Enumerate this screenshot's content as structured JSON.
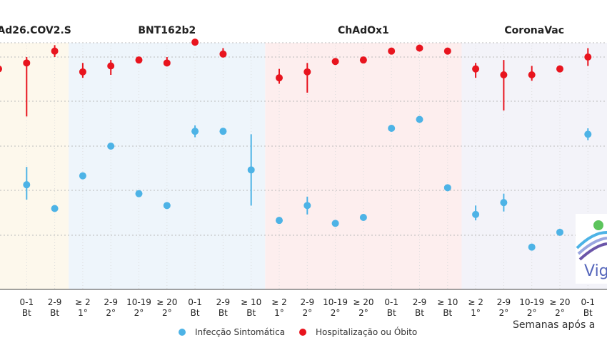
{
  "chart_data": {
    "type": "scatter",
    "series": [
      {
        "name": "Infecção Sintomática",
        "color": "#4db3e6"
      },
      {
        "name": "Hospitalização ou Óbito",
        "color": "#e8141e"
      }
    ],
    "xlabel": "Semanas após a",
    "ylim": [
      0,
      100
    ],
    "grid": true,
    "legend": "bottom",
    "categories": [
      {
        "l1": "",
        "l2": ""
      },
      {
        "l1": "0-1",
        "l2": "Bt"
      },
      {
        "l1": "2-9",
        "l2": "Bt"
      },
      {
        "l1": "≥ 2",
        "l2": "1°"
      },
      {
        "l1": "2-9",
        "l2": "2°"
      },
      {
        "l1": "10-19",
        "l2": "2°"
      },
      {
        "l1": "≥ 20",
        "l2": "2°"
      },
      {
        "l1": "0-1",
        "l2": "Bt"
      },
      {
        "l1": "2-9",
        "l2": "Bt"
      },
      {
        "l1": "≥ 10",
        "l2": "Bt"
      },
      {
        "l1": "≥ 2",
        "l2": "1°"
      },
      {
        "l1": "2-9",
        "l2": "2°"
      },
      {
        "l1": "10-19",
        "l2": "2°"
      },
      {
        "l1": "≥ 20",
        "l2": "2°"
      },
      {
        "l1": "0-1",
        "l2": "Bt"
      },
      {
        "l1": "2-9",
        "l2": "Bt"
      },
      {
        "l1": "≥ 10",
        "l2": "Bt"
      },
      {
        "l1": "≥ 2",
        "l2": "1°"
      },
      {
        "l1": "2-9",
        "l2": "2°"
      },
      {
        "l1": "10-19",
        "l2": "2°"
      },
      {
        "l1": "≥ 20",
        "l2": "2°"
      },
      {
        "l1": "0-1",
        "l2": "Bt"
      }
    ],
    "vaccines": [
      {
        "name": "Ad26.COV2.S",
        "from": 0,
        "to": 2,
        "band": "#fdf8ec"
      },
      {
        "name": "BNT162b2",
        "from": 3,
        "to": 9,
        "band": "#eef5fb"
      },
      {
        "name": "ChAdOx1",
        "from": 10,
        "to": 16,
        "band": "#fdeeee"
      },
      {
        "name": "CoronaVac",
        "from": 17,
        "to": 21,
        "band": "#f3f3f9"
      }
    ],
    "infection": [
      {
        "i": 1,
        "v": 57,
        "lo": 52,
        "hi": 63
      },
      {
        "i": 2,
        "v": 49
      },
      {
        "i": 3,
        "v": 60
      },
      {
        "i": 4,
        "v": 70
      },
      {
        "i": 5,
        "v": 54
      },
      {
        "i": 6,
        "v": 50
      },
      {
        "i": 7,
        "v": 75,
        "lo": 73,
        "hi": 77
      },
      {
        "i": 8,
        "v": 75
      },
      {
        "i": 9,
        "v": 62,
        "lo": 50,
        "hi": 74
      },
      {
        "i": 10,
        "v": 45
      },
      {
        "i": 11,
        "v": 50,
        "lo": 47,
        "hi": 53
      },
      {
        "i": 12,
        "v": 44
      },
      {
        "i": 13,
        "v": 46
      },
      {
        "i": 14,
        "v": 76
      },
      {
        "i": 15,
        "v": 79
      },
      {
        "i": 16,
        "v": 56
      },
      {
        "i": 17,
        "v": 47,
        "lo": 45,
        "hi": 50
      },
      {
        "i": 18,
        "v": 51,
        "lo": 48,
        "hi": 54
      },
      {
        "i": 19,
        "v": 36
      },
      {
        "i": 20,
        "v": 41
      },
      {
        "i": 21,
        "v": 74,
        "lo": 72,
        "hi": 76
      }
    ],
    "hospitalization": [
      {
        "i": 0,
        "v": 96
      },
      {
        "i": 1,
        "v": 98,
        "lo": 80,
        "hi": 100
      },
      {
        "i": 2,
        "v": 102,
        "lo": 100,
        "hi": 104
      },
      {
        "i": 3,
        "v": 95,
        "lo": 93,
        "hi": 98
      },
      {
        "i": 4,
        "v": 97,
        "lo": 94,
        "hi": 99
      },
      {
        "i": 5,
        "v": 99
      },
      {
        "i": 6,
        "v": 98,
        "lo": 97,
        "hi": 100
      },
      {
        "i": 7,
        "v": 105
      },
      {
        "i": 8,
        "v": 101,
        "lo": 100,
        "hi": 103
      },
      {
        "i": 10,
        "v": 93,
        "lo": 91,
        "hi": 96
      },
      {
        "i": 11,
        "v": 95,
        "lo": 88,
        "hi": 98
      },
      {
        "i": 12,
        "v": 98.5
      },
      {
        "i": 13,
        "v": 99
      },
      {
        "i": 14,
        "v": 102
      },
      {
        "i": 15,
        "v": 103
      },
      {
        "i": 16,
        "v": 102
      },
      {
        "i": 17,
        "v": 96,
        "lo": 93,
        "hi": 98
      },
      {
        "i": 18,
        "v": 94,
        "lo": 82,
        "hi": 99
      },
      {
        "i": 19,
        "v": 94,
        "lo": 92,
        "hi": 97
      },
      {
        "i": 20,
        "v": 96
      },
      {
        "i": 21,
        "v": 100,
        "lo": 97,
        "hi": 103
      }
    ]
  },
  "logo": {
    "text": "Vig"
  }
}
